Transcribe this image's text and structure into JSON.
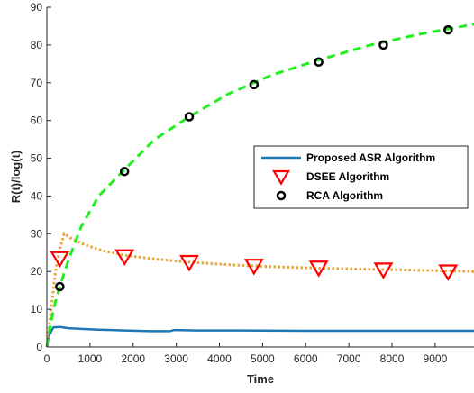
{
  "chart_data": {
    "type": "line",
    "title": "",
    "xlabel": "Time",
    "ylabel": "R(t)/log(t)",
    "xlim": [
      0,
      9900
    ],
    "ylim": [
      0,
      90
    ],
    "xticks": [
      0,
      1000,
      2000,
      3000,
      4000,
      5000,
      6000,
      7000,
      8000,
      9000
    ],
    "yticks": [
      0,
      10,
      20,
      30,
      40,
      50,
      60,
      70,
      80,
      90
    ],
    "grid": false,
    "legend_position": "right-middle",
    "series": [
      {
        "name": "Proposed ASR Algorithm",
        "style": "solid-line",
        "color": "#1f77b4",
        "x": [
          0,
          50,
          150,
          300,
          500,
          800,
          1200,
          1800,
          2400,
          2850,
          2950,
          3500,
          4500,
          6000,
          7500,
          9000,
          9900
        ],
        "y": [
          0,
          3.0,
          5.2,
          5.3,
          5.0,
          4.8,
          4.6,
          4.4,
          4.2,
          4.2,
          4.5,
          4.4,
          4.4,
          4.3,
          4.3,
          4.3,
          4.3
        ]
      },
      {
        "name": "",
        "style": "dotted-line",
        "color": "#e8a33a",
        "x": [
          0,
          100,
          200,
          300,
          400,
          600,
          900,
          1300,
          1800,
          2500,
          3300,
          4200,
          5200,
          6300,
          7500,
          8800,
          9900
        ],
        "y": [
          0,
          10,
          20,
          26,
          30,
          28.5,
          27,
          25.5,
          24.3,
          23.3,
          22.5,
          21.8,
          21.3,
          20.9,
          20.6,
          20.3,
          20.0
        ]
      },
      {
        "name": "DSEE Algorithm",
        "style": "triangle-marker",
        "color": "#ff0000",
        "x": [
          300,
          1800,
          3300,
          4800,
          6300,
          7800,
          9300
        ],
        "y": [
          23.5,
          24.0,
          22.5,
          21.5,
          21.0,
          20.5,
          20.0
        ]
      },
      {
        "name": "",
        "style": "dashed-line",
        "color": "#22ee22",
        "x": [
          0,
          100,
          200,
          300,
          500,
          800,
          1200,
          1800,
          2500,
          3300,
          4200,
          5200,
          6300,
          7500,
          8700,
          9900
        ],
        "y": [
          0,
          7,
          12,
          16,
          23,
          32,
          40,
          47,
          55,
          61,
          67,
          72,
          76,
          80,
          83,
          85.5
        ]
      },
      {
        "name": "RCA Algorithm",
        "style": "circle-marker",
        "color": "#000000",
        "x": [
          300,
          1800,
          3300,
          4800,
          6300,
          7800,
          9300
        ],
        "y": [
          16,
          46.5,
          61,
          69.5,
          75.5,
          80,
          84
        ]
      }
    ]
  }
}
